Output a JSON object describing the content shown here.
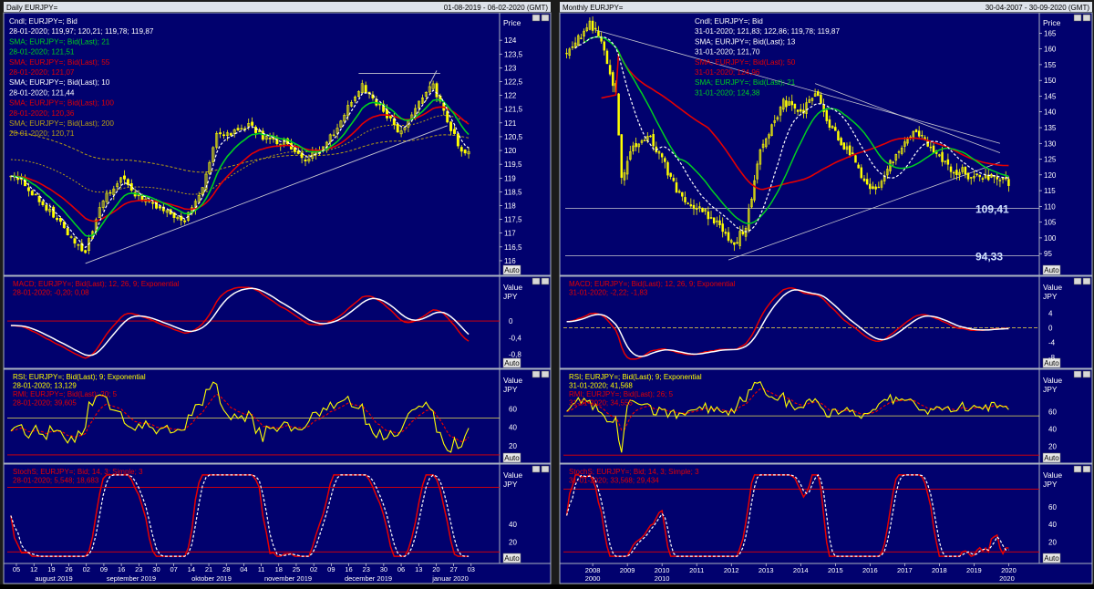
{
  "colors": {
    "bg": "#01016e",
    "border": "#aab3c2",
    "title_bar": "#dde2ea",
    "candle": "#ffff00",
    "white": "#ffffff",
    "green": "#00d020",
    "red": "#e60000",
    "orange": "#b9a012",
    "trendline": "#c8c8d0",
    "scale_text": "#ffffff"
  },
  "chart_data": [
    {
      "title": "Daily EURJPY=",
      "date_range": "01-08-2019 - 06-02-2020 (GMT)",
      "scale_title": "Price",
      "legend": [
        {
          "text": "Cndl; EURJPY=; Bid",
          "color": "white"
        },
        {
          "text": "28-01-2020; 119,97; 120,21; 119,78; 119,87",
          "color": "white"
        },
        {
          "text": "SMA; EURJPY=; Bid(Last); 21",
          "color": "green"
        },
        {
          "text": "28-01-2020; 121,51",
          "color": "green"
        },
        {
          "text": "SMA; EURJPY=; Bid(Last); 55",
          "color": "red"
        },
        {
          "text": "28-01-2020; 121,07",
          "color": "red"
        },
        {
          "text": "SMA; EURJPY=; Bid(Last); 10",
          "color": "white"
        },
        {
          "text": "28-01-2020; 121,44",
          "color": "white"
        },
        {
          "text": "SMA; EURJPY=; Bid(Last); 100",
          "color": "red"
        },
        {
          "text": "28-01-2020; 120,36",
          "color": "red"
        },
        {
          "text": "SMA; EURJPY=; Bid(Last); 200",
          "color": "orange"
        },
        {
          "text": "28-01-2020; 120,71",
          "color": "orange"
        }
      ],
      "y_ticks": [
        "124",
        "123,5",
        "123",
        "122,5",
        "122",
        "121,5",
        "121",
        "120,5",
        "120",
        "119,5",
        "119",
        "118,5",
        "118",
        "117,5",
        "117",
        "116,5",
        "116"
      ],
      "ylim": [
        115.8,
        124.6
      ],
      "x_day_ticks": [
        "05",
        "12",
        "19",
        "26",
        "02",
        "09",
        "16",
        "23",
        "30",
        "07",
        "14",
        "21",
        "28",
        "04",
        "11",
        "18",
        "25",
        "02",
        "09",
        "16",
        "23",
        "30",
        "06",
        "13",
        "20",
        "27",
        "03"
      ],
      "x_month_labels": [
        "august 2019",
        "september 2019",
        "oktober 2019",
        "november 2019",
        "december 2019",
        "januar 2020"
      ],
      "n_bars": 130,
      "close_anchors": [
        [
          0,
          119.2
        ],
        [
          6,
          118.5
        ],
        [
          14,
          117.3
        ],
        [
          21,
          116.3
        ],
        [
          25,
          118.0
        ],
        [
          31,
          119.0
        ],
        [
          37,
          118.2
        ],
        [
          44,
          117.7
        ],
        [
          49,
          117.4
        ],
        [
          54,
          118.7
        ],
        [
          58,
          120.5
        ],
        [
          63,
          120.7
        ],
        [
          68,
          120.9
        ],
        [
          72,
          120.4
        ],
        [
          77,
          120.3
        ],
        [
          83,
          119.6
        ],
        [
          89,
          120.3
        ],
        [
          94,
          121.3
        ],
        [
          99,
          122.4
        ],
        [
          104,
          121.6
        ],
        [
          110,
          120.6
        ],
        [
          115,
          121.9
        ],
        [
          119,
          122.3
        ],
        [
          123,
          121.1
        ],
        [
          126,
          120.2
        ],
        [
          129,
          119.87
        ]
      ],
      "last_values": {
        "sma21": 121.51,
        "sma55": 121.07,
        "sma10": 121.44,
        "sma100": 120.36,
        "sma200": 120.71,
        "close": 119.87
      },
      "auto_label": "Auto",
      "indicators": [
        {
          "name": "macd",
          "legend": [
            {
              "text": "MACD; EURJPY=; Bid(Last);  12, 26, 9; Exponential",
              "color": "red"
            },
            {
              "text": "28-01-2020; -0,20; 0,08",
              "color": "mixed"
            }
          ],
          "scale_title": [
            "Value",
            "JPY"
          ],
          "y_ticks": [
            "0",
            "-0,4",
            "-0,8"
          ],
          "ylim": [
            -1.05,
            0.9
          ],
          "last": [
            -0.2,
            0.08
          ]
        },
        {
          "name": "rsi",
          "legend": [
            {
              "text": "RSI; EURJPY=; Bid(Last);  9; Exponential",
              "color": "yellow"
            },
            {
              "text": "28-01-2020; 13,129",
              "color": "yellow"
            },
            {
              "text": "RMI; EURJPY=; Bid(Last);  20; 5",
              "color": "red"
            },
            {
              "text": "28-01-2020; 39,605",
              "color": "red"
            }
          ],
          "scale_title": [
            "Value",
            "JPY"
          ],
          "y_ticks": [
            "60",
            "40",
            "20"
          ],
          "ylim": [
            5,
            95
          ],
          "last": [
            13.129,
            39.605
          ]
        },
        {
          "name": "stoch",
          "legend": [
            {
              "text": "StochS; EURJPY=; Bid;  14, 3; Simple; 3",
              "color": "red"
            },
            {
              "text": "28-01-2020; 5,548; 18,683",
              "color": "mixed"
            }
          ],
          "scale_title": [
            "Value",
            "JPY"
          ],
          "y_ticks": [
            "40",
            "20"
          ],
          "ylim": [
            0,
            100
          ],
          "last": [
            5.548,
            18.683
          ]
        }
      ]
    },
    {
      "title": "Monthly EURJPY=",
      "date_range": "30-04-2007 - 30-09-2020 (GMT)",
      "scale_title": "Price",
      "legend": [
        {
          "text": "Cndl; EURJPY=; Bid",
          "color": "white"
        },
        {
          "text": "31-01-2020; 121,83; 122,86; 119,78; 119,87",
          "color": "white"
        },
        {
          "text": "SMA; EURJPY=; Bid(Last); 13",
          "color": "white"
        },
        {
          "text": "31-01-2020; 121,70",
          "color": "white"
        },
        {
          "text": "SMA; EURJPY=; Bid(Last); 50",
          "color": "red"
        },
        {
          "text": "31-01-2020; 124,96",
          "color": "red"
        },
        {
          "text": "SMA; EURJPY=; Bid(Last); 21",
          "color": "green"
        },
        {
          "text": "31-01-2020; 124,38",
          "color": "green"
        }
      ],
      "y_ticks": [
        "165",
        "160",
        "155",
        "150",
        "145",
        "140",
        "135",
        "130",
        "125",
        "120",
        "115",
        "110",
        "105",
        "100",
        "95"
      ],
      "ylim": [
        91,
        168
      ],
      "hlines": [
        {
          "value": 109.41,
          "label": "109,41"
        },
        {
          "value": 94.33,
          "label": "94,33"
        }
      ],
      "x_year_ticks": [
        "2008",
        "2009",
        "2010",
        "2011",
        "2012",
        "2013",
        "2014",
        "2015",
        "2016",
        "2017",
        "2018",
        "2019",
        "2020"
      ],
      "x_decade_labels": [
        "2000",
        "2010",
        "2020"
      ],
      "n_bars": 154,
      "close_anchors": [
        [
          0,
          160
        ],
        [
          4,
          163
        ],
        [
          8,
          168
        ],
        [
          12,
          162
        ],
        [
          17,
          145
        ],
        [
          19,
          118
        ],
        [
          22,
          127
        ],
        [
          28,
          133
        ],
        [
          34,
          123
        ],
        [
          40,
          112
        ],
        [
          48,
          108
        ],
        [
          54,
          103
        ],
        [
          58,
          98
        ],
        [
          62,
          104
        ],
        [
          64,
          112
        ],
        [
          67,
          128
        ],
        [
          71,
          136
        ],
        [
          75,
          143
        ],
        [
          82,
          140
        ],
        [
          86,
          147
        ],
        [
          90,
          138
        ],
        [
          95,
          130
        ],
        [
          99,
          126
        ],
        [
          103,
          118
        ],
        [
          107,
          115
        ],
        [
          111,
          122
        ],
        [
          117,
          131
        ],
        [
          121,
          134
        ],
        [
          125,
          129
        ],
        [
          130,
          125
        ],
        [
          134,
          120
        ],
        [
          137,
          122
        ],
        [
          140,
          119
        ],
        [
          142,
          121
        ],
        [
          144,
          119.87
        ]
      ],
      "last_values": {
        "sma13": 121.7,
        "sma50": 124.96,
        "sma21": 124.38,
        "close": 119.87
      },
      "auto_label": "Auto",
      "indicators": [
        {
          "name": "macd",
          "legend": [
            {
              "text": "MACD; EURJPY=; Bid(Last);  12, 26, 9; Exponential",
              "color": "red"
            },
            {
              "text": "31-01-2020; -2,22; -1,83",
              "color": "mixed"
            }
          ],
          "scale_title": [
            "Value",
            "JPY"
          ],
          "y_ticks": [
            "4",
            "0",
            "-4",
            "-8"
          ],
          "ylim": [
            -10,
            12
          ],
          "last": [
            -2.22,
            -1.83
          ]
        },
        {
          "name": "rsi",
          "legend": [
            {
              "text": "RSI; EURJPY=; Bid(Last);  9; Exponential",
              "color": "yellow"
            },
            {
              "text": "31-01-2020; 41,568",
              "color": "yellow"
            },
            {
              "text": "RMI; EURJPY=; Bid(Last);  26; 5",
              "color": "red"
            },
            {
              "text": "31-01-2020; 34,555",
              "color": "red"
            }
          ],
          "scale_title": [
            "Value",
            "JPY"
          ],
          "y_ticks": [
            "60",
            "40",
            "20"
          ],
          "ylim": [
            5,
            100
          ],
          "last": [
            41.568,
            34.555
          ]
        },
        {
          "name": "stoch",
          "legend": [
            {
              "text": "StochS; EURJPY=; Bid;  14, 3; Simple; 3",
              "color": "red"
            },
            {
              "text": "31-01-2020; 33,568; 29,434",
              "color": "mixed"
            }
          ],
          "scale_title": [
            "Value",
            "JPY"
          ],
          "y_ticks": [
            "60",
            "40",
            "20"
          ],
          "ylim": [
            0,
            100
          ],
          "last": [
            33.568,
            29.434
          ]
        }
      ]
    }
  ]
}
